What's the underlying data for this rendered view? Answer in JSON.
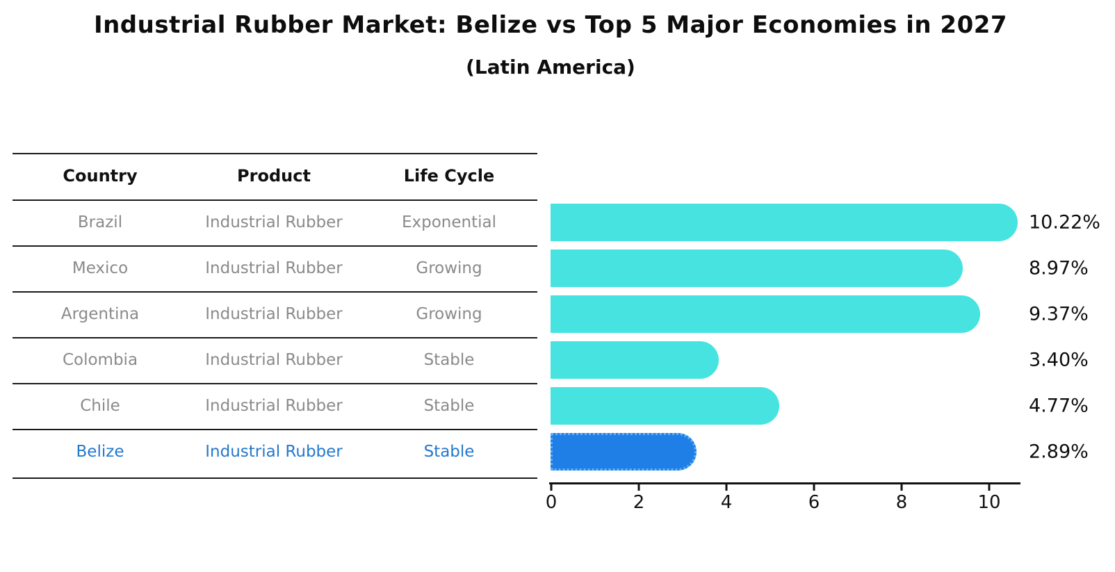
{
  "title": "Industrial Rubber Market: Belize vs Top 5 Major Economies in 2027",
  "subtitle": "(Latin America)",
  "colors": {
    "bar": "#46e3e0",
    "highlight_bar": "#1f7fe6",
    "highlight_border": "#60b0f5",
    "highlight_text": "#2478cd",
    "cell_text": "#8a8a8a",
    "line": "#1a1a1a"
  },
  "table": {
    "headers": [
      "Country",
      "Product",
      "Life Cycle"
    ],
    "rows": [
      {
        "country": "Brazil",
        "product": "Industrial Rubber",
        "life_cycle": "Exponential",
        "highlight": false
      },
      {
        "country": "Mexico",
        "product": "Industrial Rubber",
        "life_cycle": "Growing",
        "highlight": false
      },
      {
        "country": "Argentina",
        "product": "Industrial Rubber",
        "life_cycle": "Growing",
        "highlight": false
      },
      {
        "country": "Colombia",
        "product": "Industrial Rubber",
        "life_cycle": "Stable",
        "highlight": false
      },
      {
        "country": "Chile",
        "product": "Industrial Rubber",
        "life_cycle": "Stable",
        "highlight": false
      },
      {
        "country": "Belize",
        "product": "Industrial Rubber",
        "life_cycle": "Stable",
        "highlight": true
      }
    ]
  },
  "chart_data": {
    "type": "bar",
    "orientation": "horizontal",
    "title": "Industrial Rubber Market: Belize vs Top 5 Major Economies in 2027",
    "subtitle": "(Latin America)",
    "categories": [
      "Brazil",
      "Mexico",
      "Argentina",
      "Colombia",
      "Chile",
      "Belize"
    ],
    "values": [
      10.22,
      8.97,
      9.37,
      3.4,
      4.77,
      2.89
    ],
    "value_labels": [
      "10.22%",
      "8.97%",
      "9.37%",
      "3.40%",
      "4.77%",
      "2.89%"
    ],
    "unit": "%",
    "x_ticks": [
      0,
      2,
      4,
      6,
      8,
      10
    ],
    "xlim": [
      0,
      10.7
    ],
    "grid": false,
    "legend": false,
    "highlight_index": 5
  }
}
